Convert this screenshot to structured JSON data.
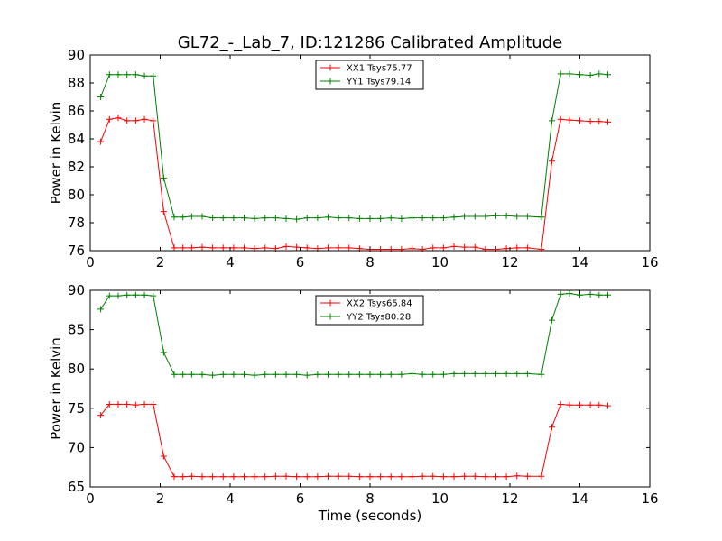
{
  "chart_data": {
    "title": "GL72_-_Lab_7, ID:121286 Calibrated Amplitude",
    "charts": [
      {
        "type": "line",
        "xlabel": "",
        "ylabel": "Power in Kelvin",
        "xlim": [
          0,
          16
        ],
        "ylim": [
          76,
          90
        ],
        "xticks": [
          "0",
          "2",
          "4",
          "6",
          "8",
          "10",
          "12",
          "14",
          "16"
        ],
        "yticks": [
          "76",
          "78",
          "80",
          "82",
          "84",
          "86",
          "88",
          "90"
        ],
        "legend_position": "top-center",
        "x": [
          0.3,
          0.55,
          0.8,
          1.05,
          1.3,
          1.55,
          1.8,
          2.1,
          2.4,
          2.65,
          2.9,
          3.2,
          3.5,
          3.8,
          4.1,
          4.4,
          4.7,
          5.0,
          5.3,
          5.6,
          5.9,
          6.2,
          6.5,
          6.8,
          7.1,
          7.4,
          7.7,
          8.0,
          8.3,
          8.6,
          8.9,
          9.2,
          9.5,
          9.8,
          10.1,
          10.4,
          10.7,
          11.0,
          11.3,
          11.6,
          11.9,
          12.2,
          12.5,
          12.9,
          13.2,
          13.45,
          13.7,
          14.0,
          14.3,
          14.55,
          14.8
        ],
        "series": [
          {
            "name": "XX1 Tsys75.77",
            "color": "#ff0000",
            "values": [
              83.8,
              85.4,
              85.5,
              85.3,
              85.3,
              85.4,
              85.3,
              78.8,
              76.2,
              76.2,
              76.2,
              76.25,
              76.2,
              76.2,
              76.2,
              76.2,
              76.15,
              76.2,
              76.15,
              76.3,
              76.25,
              76.2,
              76.15,
              76.2,
              76.2,
              76.2,
              76.15,
              76.1,
              76.1,
              76.1,
              76.1,
              76.15,
              76.1,
              76.2,
              76.2,
              76.3,
              76.25,
              76.25,
              76.1,
              76.1,
              76.15,
              76.2,
              76.2,
              76.1,
              82.4,
              85.4,
              85.35,
              85.3,
              85.25,
              85.25,
              85.2
            ]
          },
          {
            "name": "YY1 Tsys79.14",
            "color": "#008000",
            "values": [
              87.0,
              88.6,
              88.6,
              88.6,
              88.6,
              88.5,
              88.5,
              81.2,
              78.4,
              78.4,
              78.45,
              78.45,
              78.35,
              78.35,
              78.35,
              78.35,
              78.3,
              78.35,
              78.35,
              78.3,
              78.25,
              78.35,
              78.35,
              78.4,
              78.35,
              78.35,
              78.3,
              78.3,
              78.3,
              78.35,
              78.3,
              78.35,
              78.35,
              78.35,
              78.35,
              78.4,
              78.45,
              78.45,
              78.45,
              78.5,
              78.5,
              78.45,
              78.45,
              78.4,
              85.3,
              88.65,
              88.65,
              88.6,
              88.55,
              88.65,
              88.6
            ]
          }
        ]
      },
      {
        "type": "line",
        "xlabel": "Time (seconds)",
        "ylabel": "Power in Kelvin",
        "xlim": [
          0,
          16
        ],
        "ylim": [
          65,
          90
        ],
        "xticks": [
          "0",
          "2",
          "4",
          "6",
          "8",
          "10",
          "12",
          "14",
          "16"
        ],
        "yticks": [
          "65",
          "70",
          "75",
          "80",
          "85",
          "90"
        ],
        "legend_position": "top-center",
        "x": [
          0.3,
          0.55,
          0.8,
          1.05,
          1.3,
          1.55,
          1.8,
          2.1,
          2.4,
          2.65,
          2.9,
          3.2,
          3.5,
          3.8,
          4.1,
          4.4,
          4.7,
          5.0,
          5.3,
          5.6,
          5.9,
          6.2,
          6.5,
          6.8,
          7.1,
          7.4,
          7.7,
          8.0,
          8.3,
          8.6,
          8.9,
          9.2,
          9.5,
          9.8,
          10.1,
          10.4,
          10.7,
          11.0,
          11.3,
          11.6,
          11.9,
          12.2,
          12.5,
          12.9,
          13.2,
          13.45,
          13.7,
          14.0,
          14.3,
          14.55,
          14.8
        ],
        "series": [
          {
            "name": "XX2 Tsys65.84",
            "color": "#ff0000",
            "values": [
              74.1,
              75.5,
              75.5,
              75.5,
              75.4,
              75.5,
              75.5,
              68.9,
              66.3,
              66.3,
              66.35,
              66.3,
              66.3,
              66.3,
              66.3,
              66.3,
              66.3,
              66.3,
              66.35,
              66.35,
              66.3,
              66.3,
              66.3,
              66.35,
              66.35,
              66.35,
              66.3,
              66.3,
              66.3,
              66.3,
              66.3,
              66.3,
              66.35,
              66.35,
              66.3,
              66.3,
              66.35,
              66.35,
              66.3,
              66.3,
              66.3,
              66.4,
              66.35,
              66.35,
              72.6,
              75.5,
              75.4,
              75.4,
              75.4,
              75.4,
              75.3
            ]
          },
          {
            "name": "YY2 Tsys80.28",
            "color": "#008000",
            "values": [
              87.6,
              89.3,
              89.3,
              89.4,
              89.4,
              89.4,
              89.3,
              82.1,
              79.3,
              79.3,
              79.3,
              79.3,
              79.2,
              79.3,
              79.3,
              79.3,
              79.2,
              79.3,
              79.3,
              79.3,
              79.3,
              79.2,
              79.3,
              79.3,
              79.3,
              79.3,
              79.3,
              79.3,
              79.3,
              79.3,
              79.3,
              79.4,
              79.3,
              79.3,
              79.3,
              79.4,
              79.4,
              79.4,
              79.4,
              79.4,
              79.4,
              79.4,
              79.4,
              79.3,
              86.2,
              89.5,
              89.6,
              89.4,
              89.5,
              89.4,
              89.4
            ]
          }
        ]
      }
    ]
  }
}
